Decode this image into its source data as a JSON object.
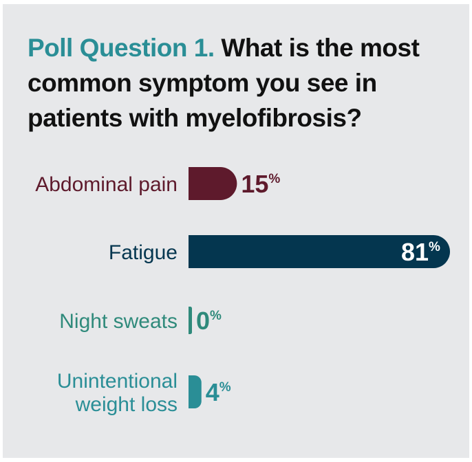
{
  "poll": {
    "lead": "Poll Question 1.",
    "question": "What is the most common symptom you see in patients with myelofibrosis?"
  },
  "colors": {
    "background": "#e7e8ea",
    "lead": "#2a8e96",
    "abdominal_pain": "#5e1a2c",
    "fatigue": "#04364f",
    "night_sweats": "#2f8a7b",
    "weight_loss": "#2a8e96"
  },
  "chart_data": {
    "type": "bar",
    "orientation": "horizontal",
    "categories": [
      [
        "Abdominal pain"
      ],
      [
        "Fatigue"
      ],
      [
        "Night sweats"
      ],
      [
        "Unintentional",
        "weight loss"
      ]
    ],
    "values": [
      15,
      81,
      0,
      4
    ],
    "unit": "%",
    "colors": [
      "#5e1a2c",
      "#04364f",
      "#2f8a7b",
      "#2a8e96"
    ],
    "label_colors": [
      "#5e1a2c",
      "#04364f",
      "#2f8a7b",
      "#2a8e96"
    ],
    "xlim": [
      0,
      81
    ],
    "grid": false,
    "legend": "none"
  }
}
